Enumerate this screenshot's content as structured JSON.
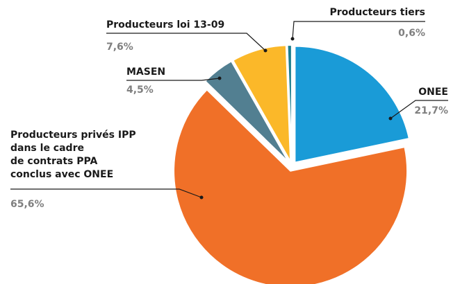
{
  "chart_data": {
    "type": "pie",
    "categories": [
      "ONEE",
      "Producteurs privés IPP\ndans le cadre\nde contrats PPA\nconclus avec ONEE",
      "MASEN",
      "Producteurs loi 13-09",
      "Producteurs tiers"
    ],
    "values": [
      21.7,
      65.6,
      4.5,
      7.6,
      0.6
    ],
    "value_labels": [
      "21,7%",
      "65,6%",
      "4,5%",
      "7,6%",
      "0,6%"
    ],
    "colors": [
      "#1a9bd7",
      "#f07028",
      "#527f91",
      "#fbb829",
      "#1b7c8c"
    ]
  }
}
